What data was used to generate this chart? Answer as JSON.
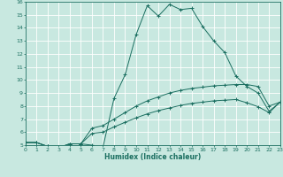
{
  "xlabel": "Humidex (Indice chaleur)",
  "bg_color": "#c8e8e0",
  "grid_color": "#ffffff",
  "line_color": "#1a6e60",
  "xlim": [
    0,
    23
  ],
  "ylim": [
    5,
    16
  ],
  "xticks": [
    0,
    1,
    2,
    3,
    4,
    5,
    6,
    7,
    8,
    9,
    10,
    11,
    12,
    13,
    14,
    15,
    16,
    17,
    18,
    19,
    20,
    21,
    22,
    23
  ],
  "yticks": [
    5,
    6,
    7,
    8,
    9,
    10,
    11,
    12,
    13,
    14,
    15,
    16
  ],
  "line1_x": [
    0,
    1,
    2,
    3,
    4,
    5,
    6,
    7,
    8,
    9,
    10,
    11,
    12,
    13,
    14,
    15,
    16,
    17,
    18,
    19,
    20,
    21,
    22,
    23
  ],
  "line1_y": [
    5.2,
    5.2,
    4.9,
    4.8,
    5.1,
    5.1,
    5.0,
    4.85,
    8.6,
    10.4,
    13.5,
    15.7,
    14.9,
    15.8,
    15.4,
    15.5,
    14.1,
    13.0,
    12.1,
    10.3,
    9.5,
    9.0,
    7.6,
    8.3
  ],
  "line2_x": [
    0,
    1,
    2,
    3,
    4,
    5,
    6,
    7,
    8,
    9,
    10,
    11,
    12,
    13,
    14,
    15,
    16,
    17,
    18,
    19,
    20,
    21,
    22,
    23
  ],
  "line2_y": [
    5.2,
    5.2,
    4.9,
    4.8,
    5.1,
    5.1,
    6.3,
    6.5,
    7.0,
    7.5,
    8.0,
    8.4,
    8.7,
    9.0,
    9.2,
    9.35,
    9.45,
    9.55,
    9.6,
    9.65,
    9.65,
    9.5,
    8.0,
    8.3
  ],
  "line3_x": [
    0,
    1,
    2,
    3,
    4,
    5,
    6,
    7,
    8,
    9,
    10,
    11,
    12,
    13,
    14,
    15,
    16,
    17,
    18,
    19,
    20,
    21,
    22,
    23
  ],
  "line3_y": [
    5.2,
    5.2,
    4.9,
    4.8,
    5.1,
    5.1,
    5.9,
    6.0,
    6.4,
    6.75,
    7.1,
    7.4,
    7.65,
    7.85,
    8.05,
    8.2,
    8.3,
    8.4,
    8.45,
    8.5,
    8.25,
    7.95,
    7.5,
    8.3
  ]
}
